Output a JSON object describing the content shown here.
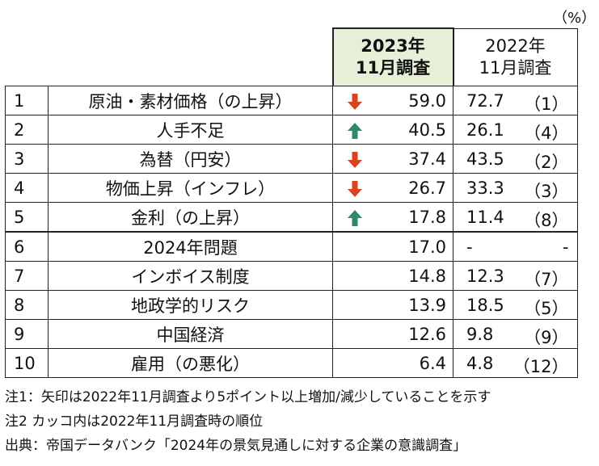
{
  "unit_label": "（%）",
  "headers": {
    "col2023_line1": "2023年",
    "col2023_line2": "11月調査",
    "col2022_line1": "2022年",
    "col2022_line2": "11月調査"
  },
  "rows": [
    {
      "rank": "1",
      "item": "原油・素材価格（の上昇）",
      "v2023": "59.0",
      "arrow": "down",
      "v2022": "72.7",
      "rank2022": "（1）"
    },
    {
      "rank": "2",
      "item": "人手不足",
      "v2023": "40.5",
      "arrow": "up",
      "v2022": "26.1",
      "rank2022": "（4）"
    },
    {
      "rank": "3",
      "item": "為替（円安）",
      "v2023": "37.4",
      "arrow": "down",
      "v2022": "43.5",
      "rank2022": "（2）"
    },
    {
      "rank": "4",
      "item": "物価上昇（インフレ）",
      "v2023": "26.7",
      "arrow": "down",
      "v2022": "33.3",
      "rank2022": "（3）"
    },
    {
      "rank": "5",
      "item": "金利（の上昇）",
      "v2023": "17.8",
      "arrow": "up",
      "v2022": "11.4",
      "rank2022": "（8）"
    },
    {
      "rank": "6",
      "item": "2024年問題",
      "v2023": "17.0",
      "arrow": "",
      "v2022": "-",
      "rank2022": "-"
    },
    {
      "rank": "7",
      "item": "インボイス制度",
      "v2023": "14.8",
      "arrow": "",
      "v2022": "12.3",
      "rank2022": "（7）"
    },
    {
      "rank": "8",
      "item": "地政学的リスク",
      "v2023": "13.9",
      "arrow": "",
      "v2022": "18.5",
      "rank2022": "（5）"
    },
    {
      "rank": "9",
      "item": "中国経済",
      "v2023": "12.6",
      "arrow": "",
      "v2022": "9.8",
      "rank2022": "（9）"
    },
    {
      "rank": "10",
      "item": "雇用（の悪化）",
      "v2023": "6.4",
      "arrow": "",
      "v2022": "4.8",
      "rank2022": "（12）"
    }
  ],
  "notes": {
    "note1": "注1：矢印は2022年11月調査より5ポイント以上増加/減少していることを示す",
    "note2": "注2 カッコ内は2022年11月調査時の順位",
    "source": "出典：帝国データバンク「2024年の景気見通しに対する企業の意識調査」"
  },
  "colors": {
    "arrow_up": "#2e8b66",
    "arrow_down": "#d8441f",
    "header_2023_bg": "#e6f0d9"
  },
  "chart_data": {
    "type": "table",
    "columns": [
      "2023年11月調査",
      "2022年11月調査"
    ],
    "unit": "（%）",
    "categories": [
      "原油・素材価格（の上昇）",
      "人手不足",
      "為替（円安）",
      "物価上昇（インフレ）",
      "金利（の上昇）",
      "2024年問題",
      "インボイス制度",
      "地政学的リスク",
      "中国経済",
      "雇用（の悪化）"
    ],
    "series": [
      {
        "name": "2023年11月調査",
        "values": [
          59.0,
          40.5,
          37.4,
          26.7,
          17.8,
          17.0,
          14.8,
          13.9,
          12.6,
          6.4
        ]
      },
      {
        "name": "2022年11月調査",
        "values": [
          72.7,
          26.1,
          43.5,
          33.3,
          11.4,
          null,
          12.3,
          18.5,
          9.8,
          4.8
        ]
      }
    ]
  }
}
